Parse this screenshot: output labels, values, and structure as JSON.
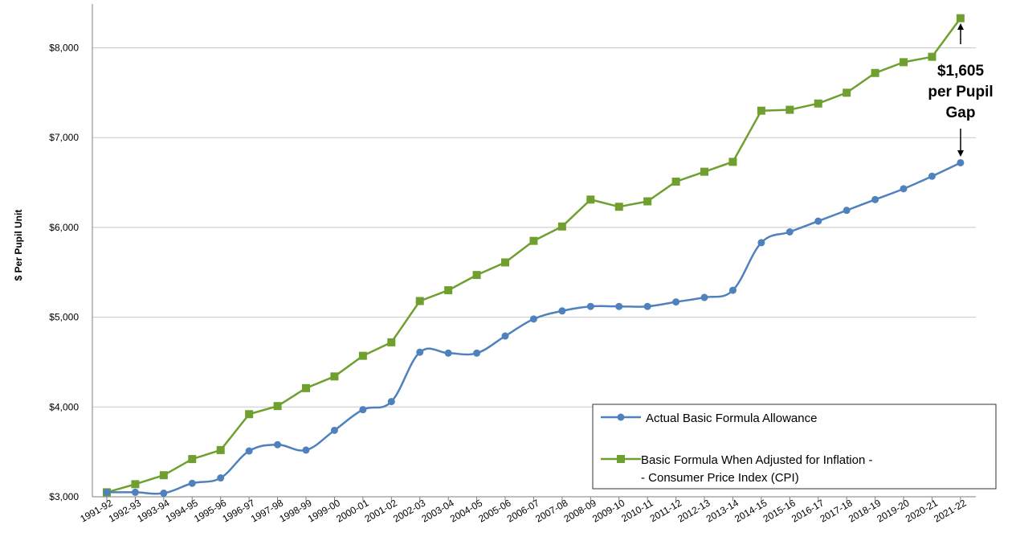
{
  "chart_data": {
    "type": "line",
    "title": "",
    "xlabel": "",
    "ylabel": "$ Per Pupil Unit",
    "ylim": [
      3000,
      8000
    ],
    "yticks": [
      {
        "value": 3000,
        "label": "$3,000"
      },
      {
        "value": 4000,
        "label": "$4,000"
      },
      {
        "value": 5000,
        "label": "$5,000"
      },
      {
        "value": 6000,
        "label": "$6,000"
      },
      {
        "value": 7000,
        "label": "$7,000"
      },
      {
        "value": 8000,
        "label": "$8,000"
      }
    ],
    "grid": true,
    "legend_position": "bottom-right",
    "categories": [
      "1991-92",
      "1992-93",
      "1993-94",
      "1994-95",
      "1995-96",
      "1996-97",
      "1997-98",
      "1998-99",
      "1999-00",
      "2000-01",
      "2001-02",
      "2002-03",
      "2003-04",
      "2004-05",
      "2005-06",
      "2006-07",
      "2007-08",
      "2008-09",
      "2009-10",
      "2010-11",
      "2011-12",
      "2012-13",
      "2013-14",
      "2014-15",
      "2015-16",
      "2016-17",
      "2017-18",
      "2018-19",
      "2019-20",
      "2020-21",
      "2021-22"
    ],
    "series": [
      {
        "name": "Actual Basic Formula Allowance",
        "color": "#4f81bd",
        "marker": "circle",
        "values": [
          3050,
          3050,
          3040,
          3150,
          3210,
          3510,
          3580,
          3520,
          3740,
          3970,
          4060,
          4610,
          4600,
          4600,
          4790,
          4980,
          5070,
          5120,
          5120,
          5120,
          5170,
          5220,
          5300,
          5830,
          5950,
          6070,
          6190,
          6310,
          6430,
          6570,
          6720
        ]
      },
      {
        "name": "Basic Formula When Adjusted for Inflation - Consumer Price Index (CPI)",
        "color": "#6fa02f",
        "marker": "square",
        "values": [
          3050,
          3140,
          3240,
          3420,
          3520,
          3920,
          4010,
          4210,
          4340,
          4570,
          4720,
          5180,
          5300,
          5470,
          5610,
          5850,
          6010,
          6310,
          6230,
          6290,
          6510,
          6620,
          6730,
          7300,
          7310,
          7380,
          7500,
          7720,
          7840,
          7900,
          8330
        ]
      }
    ],
    "annotations": [
      {
        "lines": [
          "$1,605",
          "per Pupil",
          "Gap"
        ]
      }
    ]
  }
}
